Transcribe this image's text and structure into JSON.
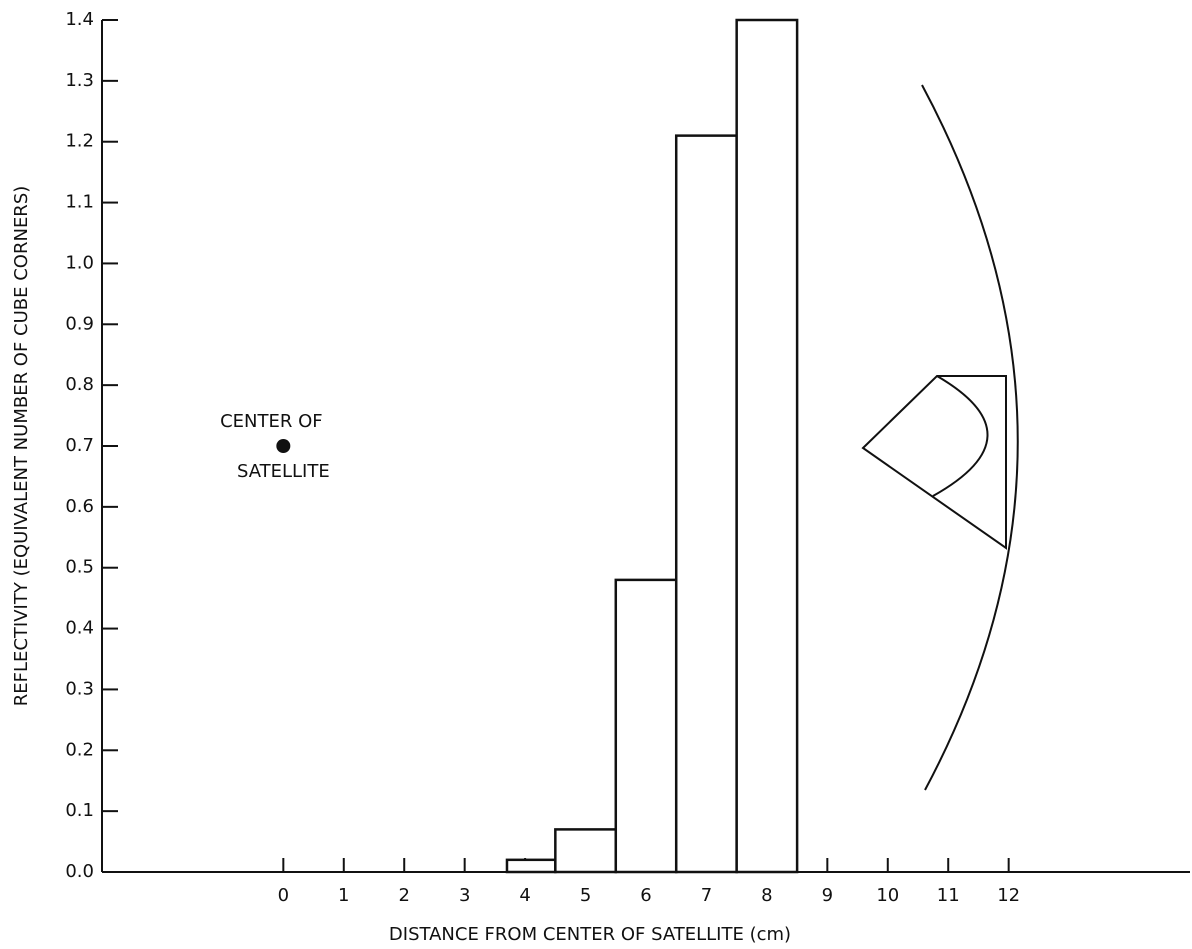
{
  "chart_data": {
    "type": "histogram",
    "xlabel": "DISTANCE FROM CENTER OF SATELLITE (cm)",
    "ylabel": "REFLECTIVITY (EQUIVALENT NUMBER OF CUBE CORNERS)",
    "bins": [
      3.7,
      4.5,
      5.5,
      6.5,
      7.5,
      8.5
    ],
    "values": [
      0.02,
      0.07,
      0.48,
      1.21,
      1.4
    ],
    "color": "#ffffff",
    "xlim": [
      -3,
      15
    ],
    "ylim": [
      0,
      1.4
    ],
    "xticks": [
      0,
      1,
      2,
      3,
      4,
      5,
      6,
      7,
      8,
      9,
      10,
      11,
      12
    ],
    "yticks": [
      {
        "value": 0,
        "label": "0.0"
      },
      0.1,
      0.2,
      0.3,
      0.4,
      0.5,
      0.6,
      0.7,
      0.8,
      0.9,
      {
        "value": 1,
        "label": "1.0"
      },
      1.1,
      1.2,
      1.3,
      1.4
    ],
    "annotation": {
      "lines": [
        "CENTER OF",
        "SATELLITE"
      ],
      "x": 0,
      "y": 0.7
    }
  }
}
